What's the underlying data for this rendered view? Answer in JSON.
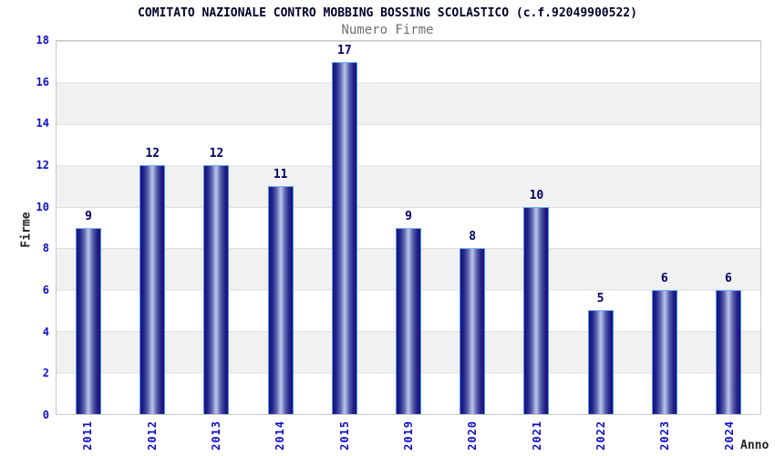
{
  "header": {
    "title": "COMITATO NAZIONALE CONTRO MOBBING BOSSING SCOLASTICO (c.f.92049900522)",
    "subtitle": "Numero Firme"
  },
  "chart_data": {
    "type": "bar",
    "title": "COMITATO NAZIONALE CONTRO MOBBING BOSSING SCOLASTICO (c.f.92049900522)",
    "subtitle": "Numero Firme",
    "xlabel": "Anno",
    "ylabel": "Firme",
    "categories": [
      "2011",
      "2012",
      "2013",
      "2014",
      "2015",
      "2019",
      "2020",
      "2021",
      "2022",
      "2023",
      "2024"
    ],
    "values": [
      9,
      12,
      12,
      11,
      17,
      9,
      8,
      10,
      5,
      6,
      6
    ],
    "ylim": [
      0,
      18
    ],
    "ytick_step": 2,
    "yticks": [
      0,
      2,
      4,
      6,
      8,
      10,
      12,
      14,
      16,
      18
    ],
    "grid": "alternating-horizontal-bands",
    "legend": "none",
    "colors": {
      "tick_label_blue": "#0f0fc8",
      "value_label_navy": "#000064",
      "bar_dark": "#14147a",
      "bar_light_center": "#b9c0e6",
      "bar_outline": "#4f96e8",
      "band_gray": "#f1f1f1",
      "subtitle_gray": "#6e6e6e",
      "title_color": "#000028"
    }
  }
}
